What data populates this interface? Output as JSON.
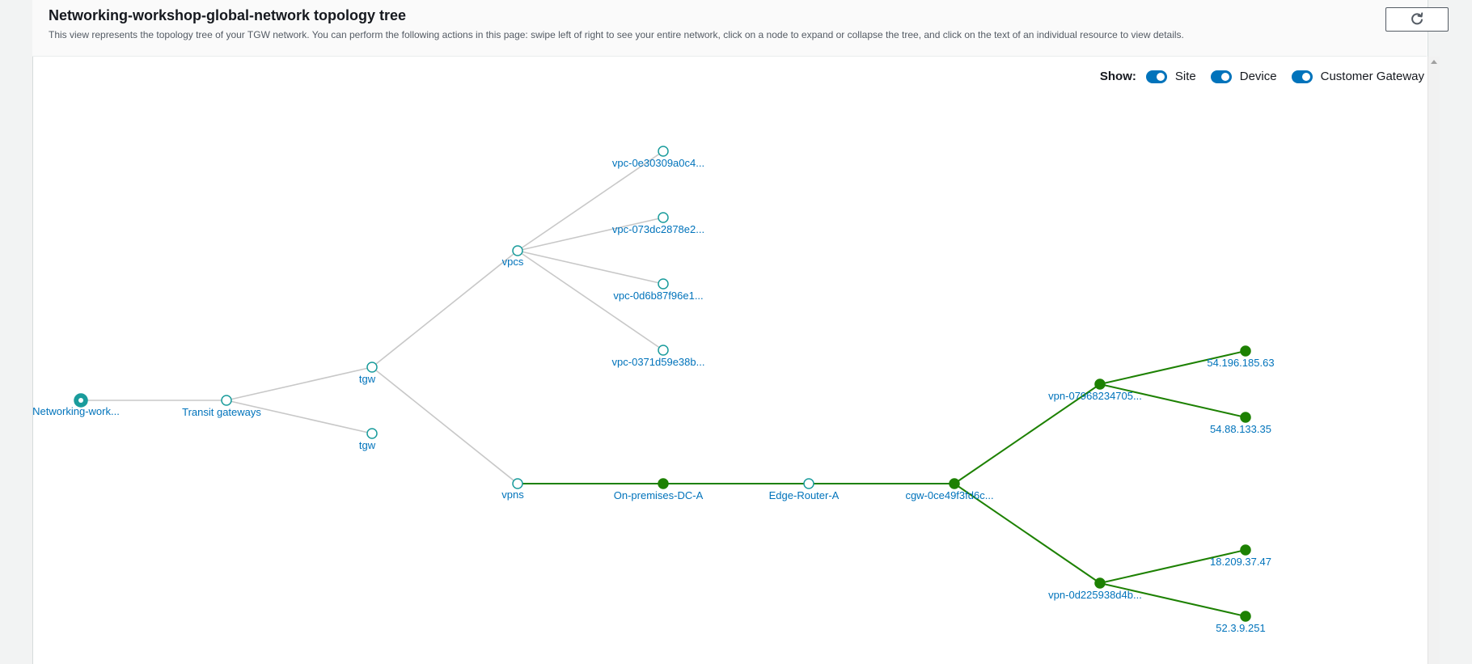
{
  "header": {
    "title": "Networking-workshop-global-network topology tree",
    "description": "This view represents the topology tree of your TGW network. You can perform the following actions in this page: swipe left of right to see your entire network, click on a node to expand or collapse the tree, and click on the text of an individual resource to view details.",
    "refresh_icon": "refresh-icon"
  },
  "show_filters": {
    "label": "Show:",
    "toggles": [
      {
        "label": "Site",
        "enabled": true
      },
      {
        "label": "Device",
        "enabled": true
      },
      {
        "label": "Customer Gateway",
        "enabled": true
      }
    ]
  },
  "colors": {
    "accent": "#0073bb",
    "root_node": "#1a9c9c",
    "node_outline": "#1a9c9c",
    "green": "#1d8102",
    "gray_link": "#c8c8c8"
  },
  "tree": {
    "nodes": [
      {
        "id": "root",
        "label": "Networking-work...",
        "style": "root"
      },
      {
        "id": "tg",
        "label": "Transit gateways",
        "style": "hollow"
      },
      {
        "id": "tgw1",
        "label": "tgw",
        "style": "hollow"
      },
      {
        "id": "tgw2",
        "label": "tgw",
        "style": "hollow"
      },
      {
        "id": "vpcs",
        "label": "vpcs",
        "style": "hollow"
      },
      {
        "id": "vpns",
        "label": "vpns",
        "style": "hollow"
      },
      {
        "id": "vpc1",
        "label": "vpc-0e30309a0c4...",
        "style": "hollow"
      },
      {
        "id": "vpc2",
        "label": "vpc-073dc2878e2...",
        "style": "hollow"
      },
      {
        "id": "vpc3",
        "label": "vpc-0d6b87f96e1...",
        "style": "hollow"
      },
      {
        "id": "vpc4",
        "label": "vpc-0371d59e38b...",
        "style": "hollow"
      },
      {
        "id": "site",
        "label": "On-premises-DC-A",
        "style": "green"
      },
      {
        "id": "device",
        "label": "Edge-Router-A",
        "style": "hollow"
      },
      {
        "id": "cgw",
        "label": "cgw-0ce49f3fd6c...",
        "style": "green"
      },
      {
        "id": "vpnA",
        "label": "vpn-07968234705...",
        "style": "green"
      },
      {
        "id": "vpnB",
        "label": "vpn-0d225938d4b...",
        "style": "green"
      },
      {
        "id": "ip1",
        "label": "54.196.185.63",
        "style": "green"
      },
      {
        "id": "ip2",
        "label": "54.88.133.35",
        "style": "green"
      },
      {
        "id": "ip3",
        "label": "18.209.37.47",
        "style": "green"
      },
      {
        "id": "ip4",
        "label": "52.3.9.251",
        "style": "green"
      }
    ],
    "links": [
      {
        "from": "root",
        "to": "tg",
        "style": "gray"
      },
      {
        "from": "tg",
        "to": "tgw1",
        "style": "gray"
      },
      {
        "from": "tg",
        "to": "tgw2",
        "style": "gray"
      },
      {
        "from": "tgw1",
        "to": "vpcs",
        "style": "gray"
      },
      {
        "from": "tgw1",
        "to": "vpns",
        "style": "gray"
      },
      {
        "from": "vpcs",
        "to": "vpc1",
        "style": "gray"
      },
      {
        "from": "vpcs",
        "to": "vpc2",
        "style": "gray"
      },
      {
        "from": "vpcs",
        "to": "vpc3",
        "style": "gray"
      },
      {
        "from": "vpcs",
        "to": "vpc4",
        "style": "gray"
      },
      {
        "from": "vpns",
        "to": "site",
        "style": "green"
      },
      {
        "from": "site",
        "to": "device",
        "style": "green"
      },
      {
        "from": "device",
        "to": "cgw",
        "style": "green"
      },
      {
        "from": "cgw",
        "to": "vpnA",
        "style": "green"
      },
      {
        "from": "cgw",
        "to": "vpnB",
        "style": "green"
      },
      {
        "from": "vpnA",
        "to": "ip1",
        "style": "green"
      },
      {
        "from": "vpnA",
        "to": "ip2",
        "style": "green"
      },
      {
        "from": "vpnB",
        "to": "ip3",
        "style": "green"
      },
      {
        "from": "vpnB",
        "to": "ip4",
        "style": "green"
      }
    ]
  }
}
